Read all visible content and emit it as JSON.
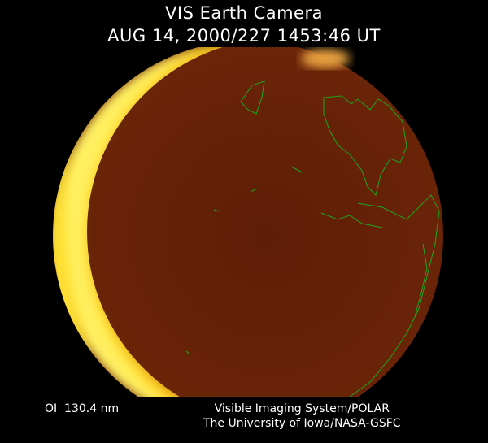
{
  "header": {
    "instrument": "VIS Earth Camera",
    "timestamp": "AUG 14, 2000/227 1453:46 UT"
  },
  "footer": {
    "filter": "OI  130.4 nm",
    "credit_line1": "Visible Imaging System/POLAR",
    "credit_line2": "The University of Iowa/NASA-GSFC"
  },
  "colors": {
    "background": "#000000",
    "disk": "#6e2408",
    "limb_glow": "#ffe020",
    "coastlines": "#1fa51f"
  }
}
